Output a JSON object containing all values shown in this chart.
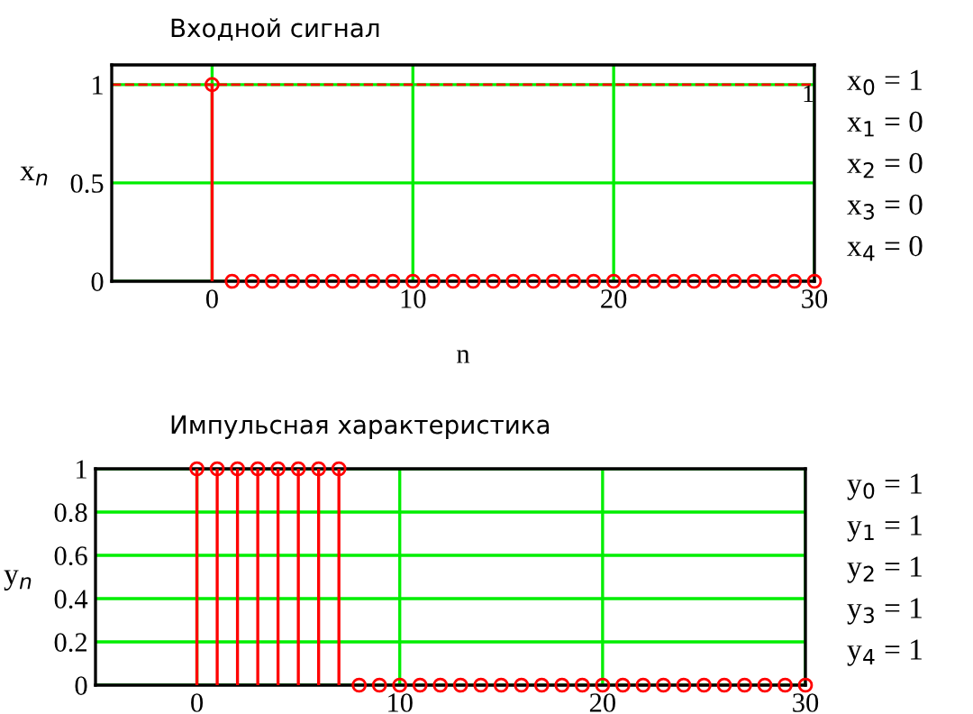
{
  "chart_data": [
    {
      "type": "lollipop",
      "title": "Входной сигнал",
      "xlabel": "n",
      "ylabel": "x$_{n}$",
      "x": [
        0,
        1,
        2,
        3,
        4,
        5,
        6,
        7,
        8,
        9,
        10,
        11,
        12,
        13,
        14,
        15,
        16,
        17,
        18,
        19,
        20,
        21,
        22,
        23,
        24,
        25,
        26,
        27,
        28,
        29,
        30
      ],
      "series": [
        {
          "color": "#ff0000",
          "values": [
            1,
            0,
            0,
            0,
            0,
            0,
            0,
            0,
            0,
            0,
            0,
            0,
            0,
            0,
            0,
            0,
            0,
            0,
            0,
            0,
            0,
            0,
            0,
            0,
            0,
            0,
            0,
            0,
            0,
            0,
            0
          ]
        }
      ],
      "xlim": [
        -5,
        30
      ],
      "ylim": [
        0,
        1.1
      ],
      "xticks": [
        0,
        10,
        20,
        30
      ],
      "yticks": [
        0,
        0.5,
        1
      ],
      "grid": true,
      "marker": "circle",
      "ref_lines": [
        {
          "axis": "y",
          "value": 1,
          "label": "1",
          "color": "#ff0000",
          "line_style": "dashed"
        }
      ],
      "annotations": [
        "x$_{0}$ = 1",
        "x$_{1}$ = 0",
        "x$_{2}$ = 0",
        "x$_{3}$ = 0",
        "x$_{4}$ = 0"
      ]
    },
    {
      "type": "lollipop",
      "title": "Импульсная характеристика",
      "ylabel": "y$_{n}$",
      "x": [
        0,
        1,
        2,
        3,
        4,
        5,
        6,
        7,
        8,
        9,
        10,
        11,
        12,
        13,
        14,
        15,
        16,
        17,
        18,
        19,
        20,
        21,
        22,
        23,
        24,
        25,
        26,
        27,
        28,
        29,
        30
      ],
      "series": [
        {
          "color": "#ff0000",
          "values": [
            1,
            1,
            1,
            1,
            1,
            1,
            1,
            1,
            0,
            0,
            0,
            0,
            0,
            0,
            0,
            0,
            0,
            0,
            0,
            0,
            0,
            0,
            0,
            0,
            0,
            0,
            0,
            0,
            0,
            0,
            0
          ]
        }
      ],
      "xlim": [
        -5,
        30
      ],
      "ylim": [
        0,
        1
      ],
      "xticks": [
        0,
        10,
        20,
        30
      ],
      "yticks": [
        0,
        0.2,
        0.4,
        0.6,
        0.8,
        1
      ],
      "grid": true,
      "marker": "circle",
      "annotations": [
        "y$_{0}$ = 1",
        "y$_{1}$ = 1",
        "y$_{2}$ = 1",
        "y$_{3}$ = 1",
        "y$_{4}$ = 1"
      ]
    }
  ]
}
